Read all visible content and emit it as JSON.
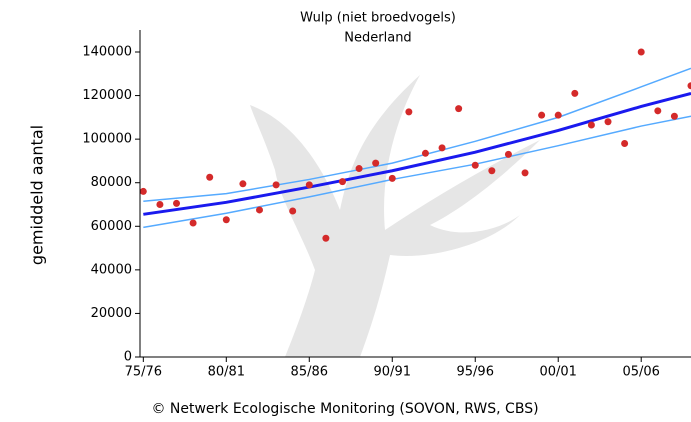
{
  "chart_data": {
    "type": "scatter",
    "title": "Wulp (niet broedvogels)",
    "subtitle": "Nederland",
    "y_label": "gemiddeld aantal",
    "footer": "© Netwerk Ecologische Monitoring (SOVON, RWS, CBS)",
    "xlim": [
      1974.8,
      2008
    ],
    "ylim": [
      0,
      140000
    ],
    "xticks": [
      {
        "value": 1975,
        "label": "75/76"
      },
      {
        "value": 1980,
        "label": "80/81"
      },
      {
        "value": 1985,
        "label": "85/86"
      },
      {
        "value": 1990,
        "label": "90/91"
      },
      {
        "value": 1995,
        "label": "95/96"
      },
      {
        "value": 2000,
        "label": "00/01"
      },
      {
        "value": 2005,
        "label": "05/06"
      }
    ],
    "yticks": [
      0,
      20000,
      40000,
      60000,
      80000,
      100000,
      120000,
      140000
    ],
    "series": [
      {
        "type": "line",
        "color": "#55aaff",
        "width": 1.5,
        "x": [
          1975,
          1980,
          1985,
          1990,
          1995,
          2000,
          2005,
          2008
        ],
        "values": [
          71500,
          75000,
          81500,
          89000,
          99000,
          110000,
          124000,
          132500
        ]
      },
      {
        "type": "line",
        "color": "#55aaff",
        "width": 1.5,
        "x": [
          1975,
          1980,
          1985,
          1990,
          1995,
          2000,
          2005,
          2008
        ],
        "values": [
          59500,
          66000,
          73500,
          81500,
          88500,
          97000,
          106000,
          110500
        ]
      },
      {
        "type": "line",
        "color": "#1a1aee",
        "width": 3,
        "x": [
          1975,
          1980,
          1985,
          1990,
          1995,
          2000,
          2005,
          2008
        ],
        "values": [
          65500,
          71000,
          78000,
          85500,
          94000,
          104000,
          115000,
          121000
        ]
      },
      {
        "type": "scatter",
        "color": "#d42a2a",
        "x": [
          1975,
          1976,
          1977,
          1978,
          1979,
          1980,
          1981,
          1982,
          1983,
          1984,
          1985,
          1986,
          1987,
          1988,
          1989,
          1990,
          1991,
          1992,
          1993,
          1994,
          1995,
          1996,
          1997,
          1998,
          1999,
          2000,
          2001,
          2002,
          2003,
          2004,
          2005,
          2006,
          2007,
          2008
        ],
        "values": [
          76000,
          70000,
          70500,
          61500,
          82500,
          63000,
          79500,
          67500,
          79000,
          67000,
          79000,
          54500,
          80500,
          86500,
          89000,
          82000,
          112500,
          93500,
          96000,
          114000,
          88000,
          85500,
          93000,
          84500,
          111000,
          111000,
          121000,
          106500,
          108000,
          98000,
          140000,
          113000,
          110500,
          124500
        ]
      }
    ]
  }
}
